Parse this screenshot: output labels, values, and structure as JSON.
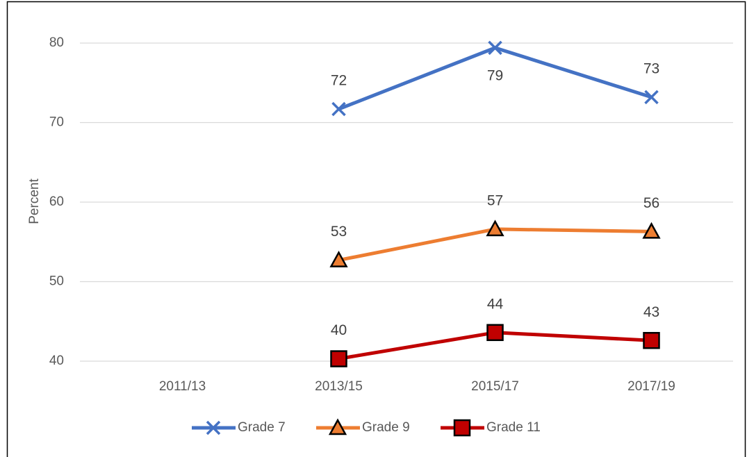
{
  "chart_data": {
    "type": "line",
    "y_label": "Percent",
    "categories": [
      "2011/13",
      "2013/15",
      "2015/17",
      "2017/19"
    ],
    "series": [
      {
        "name": "Grade 7",
        "color": "#4472c4",
        "marker": "x",
        "values": [
          null,
          71.7,
          79.4,
          73.2
        ],
        "value_labels": [
          null,
          "72",
          "79",
          "73"
        ]
      },
      {
        "name": "Grade 9",
        "color": "#ed7d31",
        "marker": "triangle",
        "values": [
          null,
          52.7,
          56.6,
          56.3
        ],
        "value_labels": [
          null,
          "53",
          "57",
          "56"
        ]
      },
      {
        "name": "Grade 11",
        "color": "#c00000",
        "marker": "square",
        "values": [
          null,
          40.3,
          43.6,
          42.6
        ],
        "value_labels": [
          null,
          "40",
          "44",
          "43"
        ]
      }
    ],
    "ylim": [
      40,
      80
    ],
    "yticks": [
      40,
      50,
      60,
      70,
      80
    ],
    "grid": true,
    "legend": "bottom"
  }
}
